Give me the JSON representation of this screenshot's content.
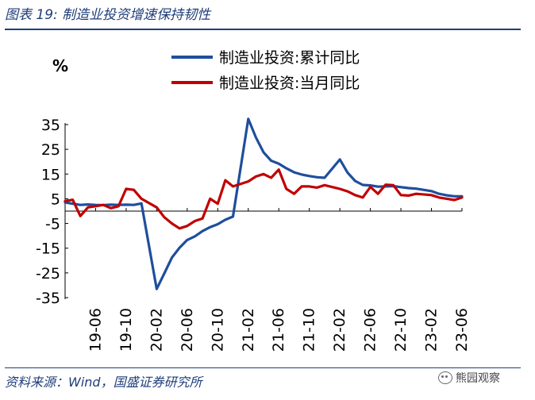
{
  "figure": {
    "title": "图表 19:  制造业投资增速保持韧性",
    "source": "资料来源：Wind，国盛证券研究所",
    "watermark": "熊园观察",
    "watermark_icon": "wechat-icon"
  },
  "chart_data": {
    "type": "line",
    "ylabel": "%",
    "ylim": [
      -35,
      35
    ],
    "yticks": [
      "35",
      "25",
      "15",
      "5",
      "-5",
      "-15",
      "-25",
      "-35"
    ],
    "ytick_values": [
      35,
      25,
      15,
      5,
      -5,
      -15,
      -25,
      -35
    ],
    "x_start": "2019-02",
    "x_tick_labels": [
      "19-06",
      "19-10",
      "20-02",
      "20-06",
      "20-10",
      "21-02",
      "21-06",
      "21-10",
      "22-02",
      "22-06",
      "22-10",
      "23-02",
      "23-06"
    ],
    "x_tick_months": [
      "2019-06",
      "2019-10",
      "2020-02",
      "2020-06",
      "2020-10",
      "2021-02",
      "2021-06",
      "2021-10",
      "2022-02",
      "2022-06",
      "2022-10",
      "2023-02",
      "2023-06"
    ],
    "legend_position": "top",
    "grid": false,
    "series": [
      {
        "name": "制造业投资:累计同比",
        "color": "#1f4e9c",
        "points": [
          [
            "2019-02",
            3.5
          ],
          [
            "2019-03",
            3.0
          ],
          [
            "2019-04",
            2.5
          ],
          [
            "2019-05",
            2.7
          ],
          [
            "2019-06",
            2.5
          ],
          [
            "2019-07",
            2.4
          ],
          [
            "2019-08",
            2.6
          ],
          [
            "2019-09",
            2.5
          ],
          [
            "2019-10",
            2.6
          ],
          [
            "2019-11",
            2.5
          ],
          [
            "2019-12",
            3.1
          ],
          [
            "2020-02",
            -31.5
          ],
          [
            "2020-03",
            -25.2
          ],
          [
            "2020-04",
            -18.8
          ],
          [
            "2020-05",
            -14.8
          ],
          [
            "2020-06",
            -11.7
          ],
          [
            "2020-07",
            -10.2
          ],
          [
            "2020-08",
            -8.1
          ],
          [
            "2020-09",
            -6.5
          ],
          [
            "2020-10",
            -5.3
          ],
          [
            "2020-11",
            -3.5
          ],
          [
            "2020-12",
            -2.2
          ],
          [
            "2021-02",
            37.3
          ],
          [
            "2021-03",
            29.8
          ],
          [
            "2021-04",
            23.8
          ],
          [
            "2021-05",
            20.4
          ],
          [
            "2021-06",
            19.2
          ],
          [
            "2021-07",
            17.3
          ],
          [
            "2021-08",
            15.7
          ],
          [
            "2021-09",
            14.8
          ],
          [
            "2021-10",
            14.2
          ],
          [
            "2021-11",
            13.7
          ],
          [
            "2021-12",
            13.5
          ],
          [
            "2022-02",
            20.9
          ],
          [
            "2022-03",
            15.6
          ],
          [
            "2022-04",
            12.2
          ],
          [
            "2022-05",
            10.6
          ],
          [
            "2022-06",
            10.4
          ],
          [
            "2022-07",
            9.9
          ],
          [
            "2022-08",
            10.0
          ],
          [
            "2022-09",
            10.1
          ],
          [
            "2022-10",
            9.7
          ],
          [
            "2022-11",
            9.3
          ],
          [
            "2022-12",
            9.1
          ],
          [
            "2023-02",
            8.1
          ],
          [
            "2023-03",
            7.0
          ],
          [
            "2023-04",
            6.4
          ],
          [
            "2023-05",
            6.0
          ],
          [
            "2023-06",
            6.0
          ]
        ]
      },
      {
        "name": "制造业投资:当月同比",
        "color": "#c00000",
        "points": [
          [
            "2019-02",
            4.0
          ],
          [
            "2019-03",
            4.6
          ],
          [
            "2019-04",
            -2.0
          ],
          [
            "2019-05",
            1.5
          ],
          [
            "2019-06",
            2.0
          ],
          [
            "2019-07",
            2.5
          ],
          [
            "2019-08",
            1.2
          ],
          [
            "2019-09",
            2.0
          ],
          [
            "2019-10",
            9.0
          ],
          [
            "2019-11",
            8.6
          ],
          [
            "2019-12",
            5.0
          ],
          [
            "2020-02",
            1.5
          ],
          [
            "2020-03",
            -2.5
          ],
          [
            "2020-04",
            -5.0
          ],
          [
            "2020-05",
            -7.0
          ],
          [
            "2020-06",
            -6.0
          ],
          [
            "2020-07",
            -4.0
          ],
          [
            "2020-08",
            -3.0
          ],
          [
            "2020-09",
            5.0
          ],
          [
            "2020-10",
            3.0
          ],
          [
            "2020-11",
            12.5
          ],
          [
            "2020-12",
            10.0
          ],
          [
            "2021-02",
            12.0
          ],
          [
            "2021-03",
            14.0
          ],
          [
            "2021-04",
            15.0
          ],
          [
            "2021-05",
            13.5
          ],
          [
            "2021-06",
            16.8
          ],
          [
            "2021-07",
            9.0
          ],
          [
            "2021-08",
            7.0
          ],
          [
            "2021-09",
            10.0
          ],
          [
            "2021-10",
            10.0
          ],
          [
            "2021-11",
            9.5
          ],
          [
            "2021-12",
            10.5
          ],
          [
            "2022-02",
            9.0
          ],
          [
            "2022-03",
            8.0
          ],
          [
            "2022-04",
            6.5
          ],
          [
            "2022-05",
            5.5
          ],
          [
            "2022-06",
            9.8
          ],
          [
            "2022-07",
            7.0
          ],
          [
            "2022-08",
            10.7
          ],
          [
            "2022-09",
            10.5
          ],
          [
            "2022-10",
            6.5
          ],
          [
            "2022-11",
            6.3
          ],
          [
            "2022-12",
            7.0
          ],
          [
            "2023-02",
            6.5
          ],
          [
            "2023-03",
            5.5
          ],
          [
            "2023-04",
            5.0
          ],
          [
            "2023-05",
            4.5
          ],
          [
            "2023-06",
            5.5
          ]
        ]
      }
    ]
  }
}
